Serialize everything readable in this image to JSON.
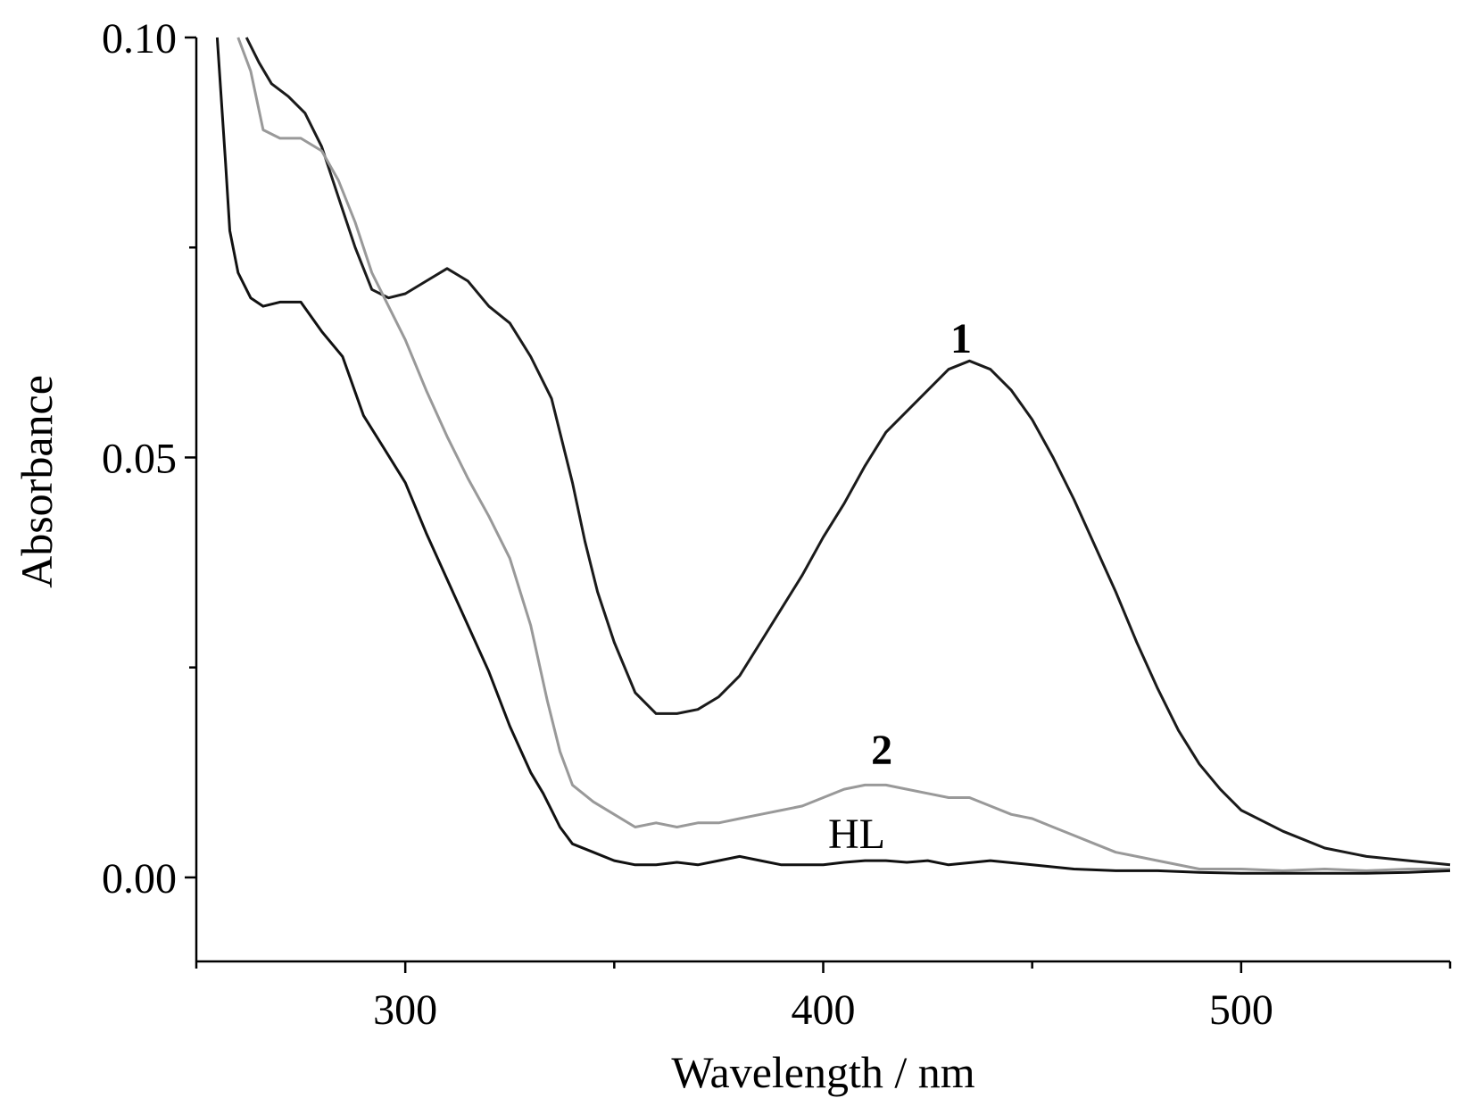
{
  "chart_data": {
    "type": "line",
    "xlabel": "Wavelength / nm",
    "ylabel": "Absorbance",
    "xlim": [
      250,
      550
    ],
    "ylim": [
      -0.01,
      0.1
    ],
    "x_ticks": [
      300,
      400,
      500
    ],
    "x_minor_ticks": [
      250,
      350,
      450,
      550
    ],
    "y_ticks": [
      0.0,
      0.05,
      0.1
    ],
    "y_tick_labels": [
      "0.00",
      "0.05",
      "0.10"
    ],
    "y_minor_ticks": [
      0.025,
      0.075
    ],
    "grid": false,
    "series": [
      {
        "name": "1",
        "color": "#1a1a1a",
        "label_at": [
          433,
          0.0625
        ],
        "bold": true,
        "x": [
          262,
          265,
          268,
          272,
          276,
          280,
          284,
          288,
          292,
          296,
          300,
          305,
          310,
          315,
          320,
          325,
          330,
          335,
          338,
          340,
          343,
          346,
          350,
          355,
          360,
          365,
          370,
          375,
          380,
          385,
          390,
          395,
          400,
          405,
          410,
          415,
          420,
          425,
          430,
          435,
          440,
          445,
          450,
          455,
          460,
          465,
          470,
          475,
          480,
          485,
          490,
          495,
          500,
          510,
          520,
          530,
          540,
          550
        ],
        "y": [
          0.1,
          0.097,
          0.0945,
          0.093,
          0.091,
          0.087,
          0.081,
          0.075,
          0.07,
          0.069,
          0.0695,
          0.071,
          0.0725,
          0.071,
          0.068,
          0.066,
          0.062,
          0.057,
          0.051,
          0.047,
          0.04,
          0.034,
          0.028,
          0.022,
          0.0195,
          0.0195,
          0.02,
          0.0215,
          0.024,
          0.028,
          0.032,
          0.036,
          0.0405,
          0.0445,
          0.049,
          0.053,
          0.0555,
          0.058,
          0.0605,
          0.0615,
          0.0605,
          0.058,
          0.0545,
          0.05,
          0.045,
          0.0395,
          0.034,
          0.028,
          0.0225,
          0.0175,
          0.0135,
          0.0105,
          0.008,
          0.0055,
          0.0035,
          0.0025,
          0.002,
          0.0015
        ]
      },
      {
        "name": "2",
        "color": "#999999",
        "label_at": [
          414,
          0.0135
        ],
        "bold": true,
        "x": [
          260,
          263,
          266,
          270,
          275,
          280,
          284,
          288,
          292,
          296,
          300,
          305,
          310,
          315,
          320,
          325,
          330,
          334,
          337,
          340,
          345,
          350,
          355,
          360,
          365,
          370,
          375,
          380,
          385,
          390,
          395,
          400,
          405,
          410,
          415,
          420,
          425,
          430,
          435,
          440,
          445,
          450,
          455,
          460,
          465,
          470,
          475,
          480,
          490,
          500,
          510,
          520,
          530,
          540,
          550
        ],
        "y": [
          0.1,
          0.096,
          0.089,
          0.088,
          0.088,
          0.0865,
          0.083,
          0.078,
          0.072,
          0.068,
          0.064,
          0.058,
          0.0525,
          0.0475,
          0.043,
          0.038,
          0.03,
          0.021,
          0.015,
          0.011,
          0.009,
          0.0075,
          0.006,
          0.0065,
          0.006,
          0.0065,
          0.0065,
          0.007,
          0.0075,
          0.008,
          0.0085,
          0.0095,
          0.0105,
          0.011,
          0.011,
          0.0105,
          0.01,
          0.0095,
          0.0095,
          0.0085,
          0.0075,
          0.007,
          0.006,
          0.005,
          0.004,
          0.003,
          0.0025,
          0.002,
          0.001,
          0.001,
          0.0008,
          0.001,
          0.0008,
          0.001,
          0.001
        ]
      },
      {
        "name": "HL",
        "color": "#111111",
        "label_at": [
          408,
          0.0035
        ],
        "bold": false,
        "x": [
          255,
          257,
          258,
          260,
          263,
          266,
          270,
          275,
          280,
          285,
          290,
          295,
          300,
          305,
          310,
          315,
          320,
          325,
          330,
          333,
          335,
          337,
          340,
          345,
          350,
          355,
          360,
          365,
          370,
          375,
          380,
          385,
          390,
          395,
          400,
          405,
          410,
          415,
          420,
          425,
          430,
          440,
          450,
          460,
          470,
          480,
          490,
          500,
          510,
          520,
          530,
          540,
          550
        ],
        "y": [
          0.1,
          0.085,
          0.077,
          0.072,
          0.069,
          0.068,
          0.0685,
          0.0685,
          0.065,
          0.062,
          0.055,
          0.051,
          0.047,
          0.041,
          0.0355,
          0.03,
          0.0245,
          0.018,
          0.0125,
          0.01,
          0.008,
          0.006,
          0.004,
          0.003,
          0.002,
          0.0015,
          0.0015,
          0.0018,
          0.0015,
          0.002,
          0.0025,
          0.002,
          0.0015,
          0.0015,
          0.0015,
          0.0018,
          0.002,
          0.002,
          0.0018,
          0.002,
          0.0015,
          0.002,
          0.0015,
          0.001,
          0.0008,
          0.0008,
          0.0006,
          0.0005,
          0.0005,
          0.0005,
          0.0005,
          0.0006,
          0.0008
        ]
      }
    ]
  }
}
